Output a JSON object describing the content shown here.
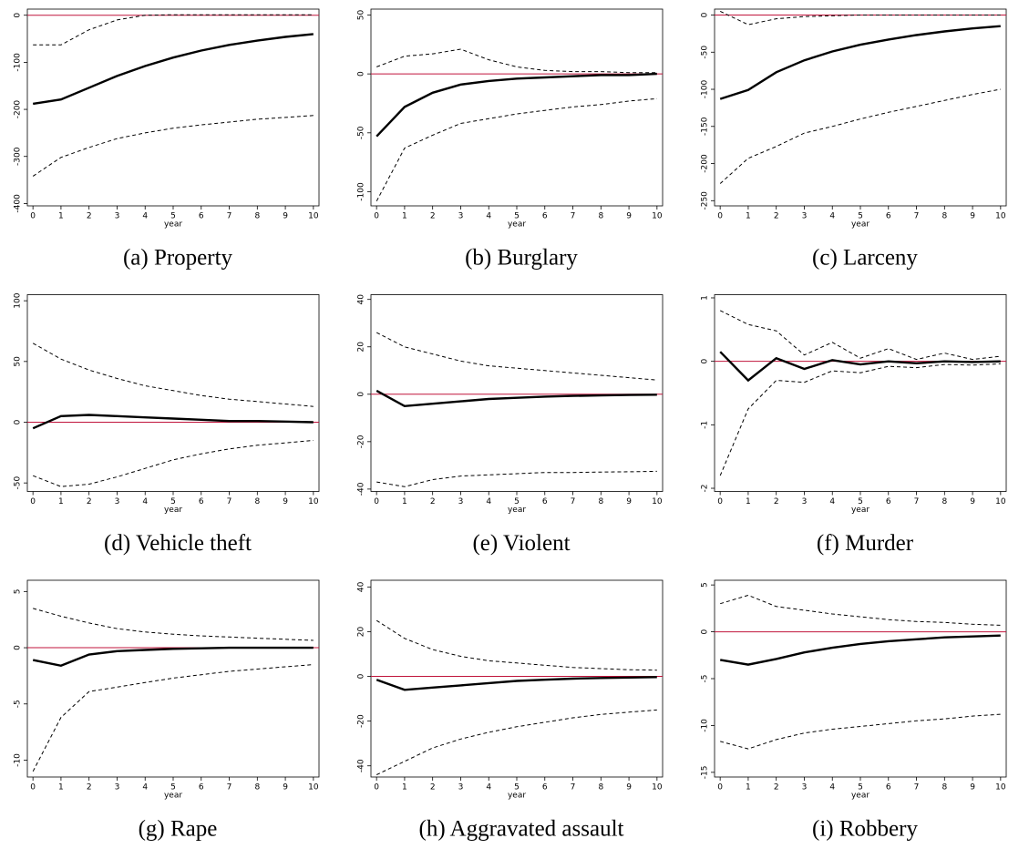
{
  "chart_data": [
    {
      "type": "line",
      "caption": "(a) Property",
      "xlabel": "year",
      "x": [
        0,
        1,
        2,
        3,
        4,
        5,
        6,
        7,
        8,
        9,
        10
      ],
      "xlim": [
        -0.2,
        10.2
      ],
      "xticks": [
        0,
        1,
        2,
        3,
        4,
        5,
        6,
        7,
        8,
        9,
        10
      ],
      "ylim": [
        -405,
        13
      ],
      "yticks": [
        0,
        -100,
        -200,
        -300,
        -400
      ],
      "hline": 0,
      "hline_color": "#c0143c",
      "series": [
        {
          "color": "#000000",
          "style": "solid",
          "values": [
            -188,
            -179,
            -154,
            -129,
            -108,
            -90,
            -75,
            -63,
            -54,
            -46,
            -40
          ]
        },
        {
          "color": "#000000",
          "style": "dashed",
          "values": [
            -63,
            -63,
            -31,
            -10,
            0,
            1,
            1,
            1,
            1,
            1,
            1
          ]
        },
        {
          "color": "#000000",
          "style": "dashed",
          "values": [
            -342,
            -302,
            -281,
            -262,
            -250,
            -240,
            -233,
            -227,
            -221,
            -217,
            -213
          ]
        }
      ]
    },
    {
      "type": "line",
      "caption": "(b) Burglary",
      "xlabel": "year",
      "x": [
        0,
        1,
        2,
        3,
        4,
        5,
        6,
        7,
        8,
        9,
        10
      ],
      "xlim": [
        -0.2,
        10.2
      ],
      "xticks": [
        0,
        1,
        2,
        3,
        4,
        5,
        6,
        7,
        8,
        9,
        10
      ],
      "ylim": [
        -112,
        55
      ],
      "yticks": [
        50,
        0,
        -50,
        -100
      ],
      "hline": 0,
      "hline_color": "#c0143c",
      "series": [
        {
          "color": "#000000",
          "style": "solid",
          "values": [
            -53,
            -28,
            -16,
            -9,
            -6,
            -4,
            -3,
            -2,
            -1,
            -1,
            0
          ]
        },
        {
          "color": "#000000",
          "style": "dashed",
          "values": [
            6,
            15,
            17,
            21,
            12,
            6,
            3,
            2,
            2,
            1,
            1
          ]
        },
        {
          "color": "#000000",
          "style": "dashed",
          "values": [
            -108,
            -63,
            -52,
            -42,
            -38,
            -34,
            -31,
            -28,
            -26,
            -23,
            -21
          ]
        }
      ]
    },
    {
      "type": "line",
      "caption": "(c) Larceny",
      "xlabel": "year",
      "x": [
        0,
        1,
        2,
        3,
        4,
        5,
        6,
        7,
        8,
        9,
        10
      ],
      "xlim": [
        -0.2,
        10.2
      ],
      "xticks": [
        0,
        1,
        2,
        3,
        4,
        5,
        6,
        7,
        8,
        9,
        10
      ],
      "ylim": [
        -257,
        8
      ],
      "yticks": [
        0,
        -50,
        -100,
        -150,
        -200,
        -250
      ],
      "hline": 0,
      "hline_color": "#c0143c",
      "series": [
        {
          "color": "#000000",
          "style": "solid",
          "values": [
            -113,
            -101,
            -77,
            -61,
            -49,
            -40,
            -33,
            -27,
            -22,
            -18,
            -15
          ]
        },
        {
          "color": "#000000",
          "style": "dashed",
          "values": [
            5,
            -13,
            -5,
            -2,
            -1,
            0,
            0,
            0,
            0,
            0,
            0
          ]
        },
        {
          "color": "#000000",
          "style": "dashed",
          "values": [
            -227,
            -193,
            -177,
            -159,
            -150,
            -140,
            -131,
            -123,
            -115,
            -107,
            -100
          ]
        }
      ]
    },
    {
      "type": "line",
      "caption": "(d) Vehicle theft",
      "xlabel": "year",
      "x": [
        0,
        1,
        2,
        3,
        4,
        5,
        6,
        7,
        8,
        9,
        10
      ],
      "xlim": [
        -0.2,
        10.2
      ],
      "xticks": [
        0,
        1,
        2,
        3,
        4,
        5,
        6,
        7,
        8,
        9,
        10
      ],
      "ylim": [
        -57,
        105
      ],
      "yticks": [
        100,
        50,
        0,
        -50
      ],
      "hline": 0,
      "hline_color": "#c0143c",
      "series": [
        {
          "color": "#000000",
          "style": "solid",
          "values": [
            -5,
            5,
            6,
            5,
            4,
            3,
            2,
            1,
            1,
            0.5,
            0
          ]
        },
        {
          "color": "#000000",
          "style": "dashed",
          "values": [
            65,
            52,
            43,
            36,
            30,
            26,
            22,
            19,
            17,
            15,
            13
          ]
        },
        {
          "color": "#000000",
          "style": "dashed",
          "values": [
            -44,
            -53,
            -51,
            -45,
            -38,
            -31,
            -26,
            -22,
            -19,
            -17,
            -15
          ]
        }
      ]
    },
    {
      "type": "line",
      "caption": "(e) Violent",
      "xlabel": "year",
      "x": [
        0,
        1,
        2,
        3,
        4,
        5,
        6,
        7,
        8,
        9,
        10
      ],
      "xlim": [
        -0.2,
        10.2
      ],
      "xticks": [
        0,
        1,
        2,
        3,
        4,
        5,
        6,
        7,
        8,
        9,
        10
      ],
      "ylim": [
        -41,
        42
      ],
      "yticks": [
        40,
        20,
        0,
        -20,
        -40
      ],
      "hline": 0,
      "hline_color": "#c0143c",
      "series": [
        {
          "color": "#000000",
          "style": "solid",
          "values": [
            1.5,
            -5,
            -4,
            -3,
            -2,
            -1.5,
            -1,
            -0.7,
            -0.5,
            -0.3,
            -0.2
          ]
        },
        {
          "color": "#000000",
          "style": "dashed",
          "values": [
            26,
            20,
            17,
            14,
            12,
            11,
            10,
            9,
            8,
            7,
            6
          ]
        },
        {
          "color": "#000000",
          "style": "dashed",
          "values": [
            -37,
            -39,
            -36,
            -34.5,
            -34,
            -33.5,
            -33,
            -33,
            -32.8,
            -32.7,
            -32.5
          ]
        }
      ]
    },
    {
      "type": "line",
      "caption": "(f) Murder",
      "xlabel": "year",
      "x": [
        0,
        1,
        2,
        3,
        4,
        5,
        6,
        7,
        8,
        9,
        10
      ],
      "xlim": [
        -0.2,
        10.2
      ],
      "xticks": [
        0,
        1,
        2,
        3,
        4,
        5,
        6,
        7,
        8,
        9,
        10
      ],
      "ylim": [
        -2.05,
        1.05
      ],
      "yticks": [
        1,
        0,
        -1,
        -2
      ],
      "hline": 0,
      "hline_color": "#c0143c",
      "series": [
        {
          "color": "#000000",
          "style": "solid",
          "values": [
            0.15,
            -0.3,
            0.05,
            -0.12,
            0.02,
            -0.05,
            0,
            -0.03,
            0,
            -0.01,
            0
          ]
        },
        {
          "color": "#000000",
          "style": "dashed",
          "values": [
            0.8,
            0.58,
            0.48,
            0.1,
            0.3,
            0.05,
            0.2,
            0.03,
            0.13,
            0.03,
            0.08
          ]
        },
        {
          "color": "#000000",
          "style": "dashed",
          "values": [
            -1.8,
            -0.75,
            -0.3,
            -0.33,
            -0.15,
            -0.18,
            -0.08,
            -0.1,
            -0.05,
            -0.06,
            -0.04
          ]
        }
      ]
    },
    {
      "type": "line",
      "caption": "(g) Rape",
      "xlabel": "year",
      "x": [
        0,
        1,
        2,
        3,
        4,
        5,
        6,
        7,
        8,
        9,
        10
      ],
      "xlim": [
        -0.2,
        10.2
      ],
      "xticks": [
        0,
        1,
        2,
        3,
        4,
        5,
        6,
        7,
        8,
        9,
        10
      ],
      "ylim": [
        -11.5,
        6
      ],
      "yticks": [
        5,
        0,
        -5,
        -10
      ],
      "hline": 0,
      "hline_color": "#c0143c",
      "series": [
        {
          "color": "#000000",
          "style": "solid",
          "values": [
            -1.1,
            -1.6,
            -0.6,
            -0.3,
            -0.2,
            -0.1,
            -0.05,
            0,
            0,
            0,
            0
          ]
        },
        {
          "color": "#000000",
          "style": "dashed",
          "values": [
            3.5,
            2.8,
            2.2,
            1.7,
            1.4,
            1.2,
            1.05,
            0.95,
            0.85,
            0.75,
            0.65
          ]
        },
        {
          "color": "#000000",
          "style": "dashed",
          "values": [
            -11,
            -6.2,
            -3.9,
            -3.5,
            -3.1,
            -2.7,
            -2.4,
            -2.1,
            -1.9,
            -1.7,
            -1.5
          ]
        }
      ]
    },
    {
      "type": "line",
      "caption": "(h) Aggravated assault",
      "xlabel": "year",
      "x": [
        0,
        1,
        2,
        3,
        4,
        5,
        6,
        7,
        8,
        9,
        10
      ],
      "xlim": [
        -0.2,
        10.2
      ],
      "xticks": [
        0,
        1,
        2,
        3,
        4,
        5,
        6,
        7,
        8,
        9,
        10
      ],
      "ylim": [
        -45,
        43
      ],
      "yticks": [
        40,
        20,
        0,
        -20,
        -40
      ],
      "hline": 0,
      "hline_color": "#c0143c",
      "series": [
        {
          "color": "#000000",
          "style": "solid",
          "values": [
            -1.5,
            -6,
            -5,
            -4,
            -3,
            -2,
            -1.5,
            -1,
            -0.7,
            -0.5,
            -0.3
          ]
        },
        {
          "color": "#000000",
          "style": "dashed",
          "values": [
            25,
            17,
            12,
            9,
            7,
            6,
            5,
            4,
            3.5,
            3,
            2.8
          ]
        },
        {
          "color": "#000000",
          "style": "dashed",
          "values": [
            -44,
            -38,
            -32,
            -28,
            -25,
            -22.5,
            -20.5,
            -18.5,
            -17,
            -16,
            -15
          ]
        }
      ]
    },
    {
      "type": "line",
      "caption": "(i) Robbery",
      "xlabel": "year",
      "x": [
        0,
        1,
        2,
        3,
        4,
        5,
        6,
        7,
        8,
        9,
        10
      ],
      "xlim": [
        -0.2,
        10.2
      ],
      "xticks": [
        0,
        1,
        2,
        3,
        4,
        5,
        6,
        7,
        8,
        9,
        10
      ],
      "ylim": [
        -15.5,
        5.5
      ],
      "yticks": [
        5,
        0,
        -5,
        -10,
        -15
      ],
      "hline": 0,
      "hline_color": "#c0143c",
      "series": [
        {
          "color": "#000000",
          "style": "solid",
          "values": [
            -3,
            -3.5,
            -2.9,
            -2.2,
            -1.7,
            -1.3,
            -1,
            -0.8,
            -0.6,
            -0.5,
            -0.4
          ]
        },
        {
          "color": "#000000",
          "style": "dashed",
          "values": [
            3,
            3.9,
            2.7,
            2.3,
            1.9,
            1.6,
            1.3,
            1.1,
            1,
            0.8,
            0.7
          ]
        },
        {
          "color": "#000000",
          "style": "dashed",
          "values": [
            -11.7,
            -12.5,
            -11.5,
            -10.8,
            -10.4,
            -10.1,
            -9.8,
            -9.5,
            -9.3,
            -9,
            -8.8
          ]
        }
      ]
    }
  ]
}
